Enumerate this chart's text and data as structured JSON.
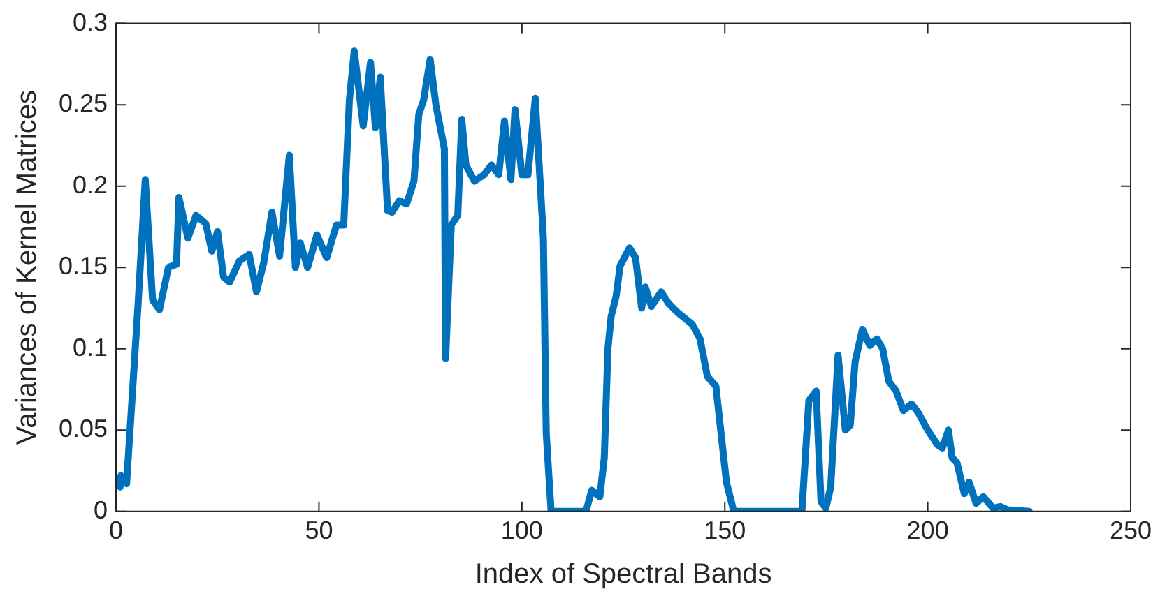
{
  "chart_data": {
    "type": "line",
    "xlabel": "Index of Spectral Bands",
    "ylabel": "Variances of Kernel Matrices",
    "xlim": [
      0,
      250
    ],
    "xticks": [
      0,
      50,
      100,
      150,
      200,
      250
    ],
    "ylim": [
      0,
      0.3
    ],
    "yticks": [
      0,
      0.05,
      0.1,
      0.15,
      0.2,
      0.25,
      0.3
    ],
    "grid": false,
    "legend": false,
    "marker": "none",
    "line_style": "solid",
    "series": [
      {
        "color": "#0072bd",
        "x": [
          1,
          1.2,
          2.6,
          5.4,
          7.2,
          9,
          10.7,
          12.9,
          14.9,
          15.5,
          17.7,
          19.7,
          22.1,
          23.6,
          25,
          26.5,
          28,
          30.4,
          32.8,
          34.6,
          36.4,
          38.4,
          40.3,
          42.7,
          44.2,
          45.4,
          47.2,
          49.5,
          51.9,
          54.3,
          56.1,
          57.5,
          58.7,
          60.9,
          62.7,
          63.9,
          65.1,
          66.9,
          68,
          69.8,
          71.6,
          73.4,
          74.6,
          75.8,
          77.4,
          78.8,
          80.9,
          81.2,
          82.6,
          84.2,
          85.2,
          86.2,
          88.3,
          90.7,
          92.5,
          94.3,
          95.7,
          97.3,
          98.3,
          100,
          101.5,
          103.3,
          105.3,
          106,
          107.2,
          115.8,
          117.2,
          119.2,
          120.3,
          121.2,
          122,
          123.2,
          124.2,
          126.5,
          128,
          129.5,
          130.4,
          131.9,
          134.3,
          136.1,
          138.5,
          142,
          143.9,
          145.7,
          147.8,
          150.4,
          152.2,
          169,
          170.7,
          172.5,
          173.7,
          174.9,
          176.1,
          177.9,
          179.7,
          180.9,
          182.1,
          183.9,
          185.7,
          187.5,
          188.9,
          190.4,
          192.2,
          194,
          196,
          197.6,
          200,
          202.4,
          203.6,
          205.1,
          206,
          207.2,
          209,
          210.2,
          211.9,
          213.7,
          216.1,
          217.9,
          219.7,
          225
        ],
        "values": [
          0.015,
          0.022,
          0.017,
          0.126,
          0.204,
          0.13,
          0.124,
          0.15,
          0.152,
          0.193,
          0.168,
          0.182,
          0.177,
          0.16,
          0.172,
          0.144,
          0.141,
          0.154,
          0.158,
          0.135,
          0.153,
          0.184,
          0.157,
          0.219,
          0.15,
          0.165,
          0.15,
          0.17,
          0.156,
          0.176,
          0.176,
          0.253,
          0.283,
          0.237,
          0.276,
          0.236,
          0.267,
          0.185,
          0.184,
          0.191,
          0.189,
          0.203,
          0.244,
          0.253,
          0.278,
          0.25,
          0.223,
          0.094,
          0.176,
          0.182,
          0.241,
          0.213,
          0.203,
          0.207,
          0.213,
          0.207,
          0.24,
          0.204,
          0.247,
          0.207,
          0.207,
          0.254,
          0.168,
          0.048,
          0,
          0,
          0.013,
          0.009,
          0.033,
          0.1,
          0.12,
          0.132,
          0.151,
          0.162,
          0.156,
          0.125,
          0.138,
          0.126,
          0.135,
          0.128,
          0.122,
          0.115,
          0.106,
          0.083,
          0.077,
          0.018,
          0,
          0,
          0.068,
          0.074,
          0.006,
          0.002,
          0.015,
          0.096,
          0.05,
          0.053,
          0.092,
          0.112,
          0.102,
          0.106,
          0.1,
          0.08,
          0.074,
          0.062,
          0.066,
          0.061,
          0.05,
          0.041,
          0.039,
          0.05,
          0.033,
          0.03,
          0.011,
          0.018,
          0.005,
          0.009,
          0.002,
          0.003,
          0.001,
          0
        ]
      }
    ]
  }
}
